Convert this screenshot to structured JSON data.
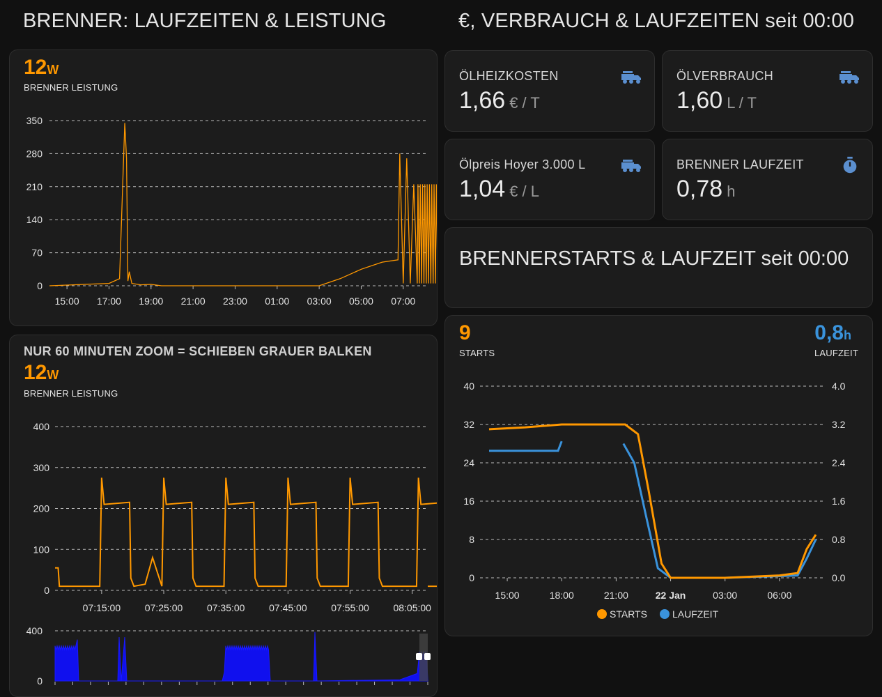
{
  "titles": {
    "left": "BRENNER: LAUFZEITEN & LEISTUNG",
    "right": "€, VERBRAUCH & LAUFZEITEN seit 00:00",
    "starts": "BRENNERSTARTS & LAUFZEIT seit 00:00"
  },
  "colors": {
    "orange": "#ff9800",
    "blue": "#3a93dc",
    "zoom_blue": "#1010ee"
  },
  "power_card": {
    "value": "12",
    "unit": "W",
    "label": "BRENNER LEISTUNG"
  },
  "zoom_card": {
    "heading": "NUR 60 MINUTEN ZOOM = SCHIEBEN GRAUER BALKEN",
    "value": "12",
    "unit": "W",
    "label": "BRENNER LEISTUNG"
  },
  "tiles": [
    {
      "name": "ÖLHEIZKOSTEN",
      "value": "1,66",
      "unit": "€ / T",
      "icon": "tanker-truck-icon"
    },
    {
      "name": "ÖLVERBRAUCH",
      "value": "1,60",
      "unit": "L / T",
      "icon": "tanker-truck-icon"
    },
    {
      "name": "Ölpreis Hoyer 3.000 L",
      "value": "1,04",
      "unit": "€ / L",
      "icon": "tanker-truck-icon"
    },
    {
      "name": "BRENNER LAUFZEIT",
      "value": "0,78",
      "unit": "h",
      "icon": "timer-icon"
    }
  ],
  "starts_card": {
    "starts_value": "9",
    "starts_label": "STARTS",
    "runtime_value": "0,8",
    "runtime_unit": "h",
    "runtime_label": "LAUFZEIT"
  },
  "chart_data": [
    {
      "type": "line",
      "name": "power-24h",
      "x_tick_labels": [
        "15:00",
        "17:00",
        "19:00",
        "21:00",
        "23:00",
        "01:00",
        "03:00",
        "05:00",
        "07:00"
      ],
      "y_ticks": [
        0,
        70,
        140,
        210,
        280,
        350
      ],
      "ylim": [
        0,
        350
      ],
      "series": [
        {
          "color": "#ff9800",
          "x": [
            "14:10",
            "17:00",
            "17:30",
            "17:45",
            "17:50",
            "17:54",
            "17:58",
            "18:05",
            "18:30",
            "19:00",
            "19:30",
            "20:00",
            "03:00",
            "04:00",
            "05:00",
            "06:00",
            "06:45",
            "06:50",
            "07:00",
            "07:10",
            "07:20",
            "07:30",
            "07:40"
          ],
          "values": [
            0,
            5,
            15,
            345,
            270,
            10,
            30,
            5,
            2,
            3,
            0,
            0,
            0,
            15,
            35,
            50,
            55,
            280,
            5,
            270,
            5,
            215,
            5
          ]
        }
      ]
    },
    {
      "type": "line",
      "name": "power-60min-zoom",
      "x_tick_labels": [
        "07:15:00",
        "07:25:00",
        "07:35:00",
        "07:45:00",
        "07:55:00",
        "08:05:00"
      ],
      "y_ticks": [
        0,
        100,
        200,
        300,
        400
      ],
      "ylim": [
        0,
        400
      ],
      "series": [
        {
          "color": "#ff9800",
          "cycles_start_minutes": [
            7.5,
            17.5,
            27.5,
            37.5,
            47.5,
            58.5
          ],
          "peak": 275,
          "plateau": 210,
          "idle": 10
        }
      ]
    },
    {
      "type": "area",
      "name": "power-overview-navigator",
      "y_ticks": [
        0,
        400
      ],
      "ylim": [
        0,
        400
      ],
      "series": [
        {
          "color": "#1010ee"
        }
      ]
    },
    {
      "type": "line",
      "name": "starts-runtime",
      "x_tick_labels": [
        "15:00",
        "18:00",
        "21:00",
        "22 Jan",
        "03:00",
        "06:00"
      ],
      "y_ticks_left": [
        0,
        8,
        16,
        24,
        32,
        40
      ],
      "y_ticks_right": [
        "0.0",
        "0.8",
        "1.6",
        "2.4",
        "3.2",
        "4.0"
      ],
      "ylim_left": [
        0,
        40
      ],
      "ylim_right": [
        0,
        4
      ],
      "legend": [
        "STARTS",
        "LAUFZEIT"
      ],
      "legend_position": "bottom",
      "series": [
        {
          "name": "STARTS",
          "axis": "left",
          "color": "#ff9800",
          "x": [
            14,
            16,
            18,
            21.5,
            22.2,
            22.8,
            23.5,
            24,
            27,
            30,
            31,
            31.5,
            32
          ],
          "values": [
            31,
            31.4,
            32,
            32,
            30,
            18,
            3,
            0,
            0,
            0.5,
            1,
            6,
            9
          ]
        },
        {
          "name": "LAUFZEIT",
          "axis": "right",
          "color": "#3a93dc",
          "x": [
            14,
            17.8,
            18,
            21.4,
            22,
            22.7,
            23.3,
            24,
            27,
            31,
            31.5,
            32
          ],
          "values": [
            2.65,
            2.65,
            2.85,
            2.8,
            2.4,
            1.2,
            0.2,
            0,
            0,
            0.05,
            0.4,
            0.8
          ]
        }
      ]
    }
  ]
}
